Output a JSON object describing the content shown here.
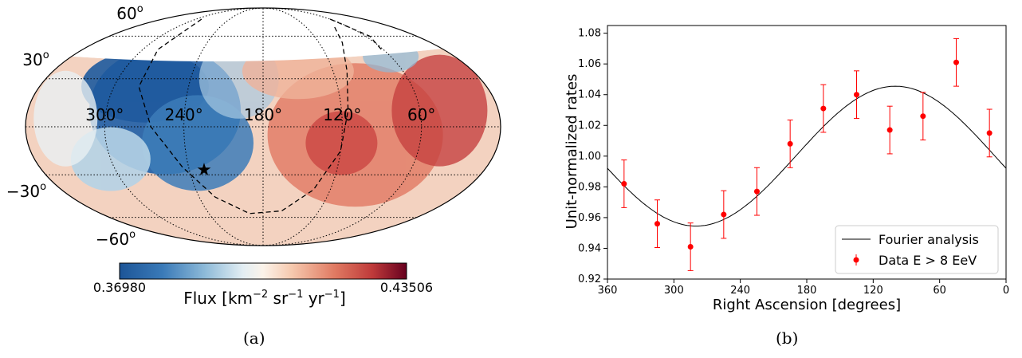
{
  "captions": {
    "a": "(a)",
    "b": "(b)"
  },
  "colors": {
    "low": "#1a5aa0",
    "mid": "#fbf3ea",
    "high": "#67001f",
    "point": "#ff0000",
    "fit": "#000000"
  },
  "chart_data": [
    {
      "type": "heatmap",
      "projection": "mollweide",
      "ra_labels": [
        "300°",
        "240°",
        "180°",
        "120°",
        "60°"
      ],
      "dec_labels": [
        {
          "base": "60",
          "sup": "o"
        },
        {
          "base": "30",
          "sup": "o"
        },
        {
          "base": "−30",
          "sup": "o"
        },
        {
          "base": "−60",
          "sup": "o"
        }
      ],
      "colorbar": {
        "min_label": "0.36980",
        "max_label": "0.43506",
        "vmin": 0.3698,
        "vmax": 0.43506,
        "label_prefix": "Flux [km",
        "label_sup1": "−2",
        "label_mid1": " sr",
        "label_sup2": "−1",
        "label_mid2": " yr",
        "label_sup3": "−1",
        "label_suffix": "]"
      },
      "marker": {
        "symbol": "★",
        "ra": 228,
        "dec": -27
      }
    },
    {
      "type": "scatter",
      "xlabel": "Right Ascension [degrees]",
      "ylabel": "Unit-normalized rates",
      "xlim": [
        360,
        0
      ],
      "ylim": [
        0.92,
        1.085
      ],
      "x_ticks": [
        360,
        300,
        240,
        180,
        120,
        60,
        0
      ],
      "y_ticks": [
        0.92,
        0.94,
        0.96,
        0.98,
        1.0,
        1.02,
        1.04,
        1.06,
        1.08
      ],
      "grid": false,
      "legend_position": "lower-right",
      "series": [
        {
          "name": "Fourier analysis",
          "kind": "line",
          "amplitude": 0.0455,
          "phase_deg": 100
        },
        {
          "name": "Data E > 8 EeV",
          "kind": "errorbar",
          "x": [
            345,
            315,
            285,
            255,
            225,
            195,
            165,
            135,
            105,
            75,
            45,
            15
          ],
          "y": [
            0.982,
            0.956,
            0.941,
            0.962,
            0.977,
            1.008,
            1.031,
            1.04,
            1.017,
            1.026,
            1.061,
            1.015
          ],
          "err": [
            0.0155,
            0.0155,
            0.0155,
            0.0155,
            0.0155,
            0.0155,
            0.0155,
            0.0155,
            0.0155,
            0.0155,
            0.0155,
            0.0155
          ]
        }
      ]
    }
  ]
}
